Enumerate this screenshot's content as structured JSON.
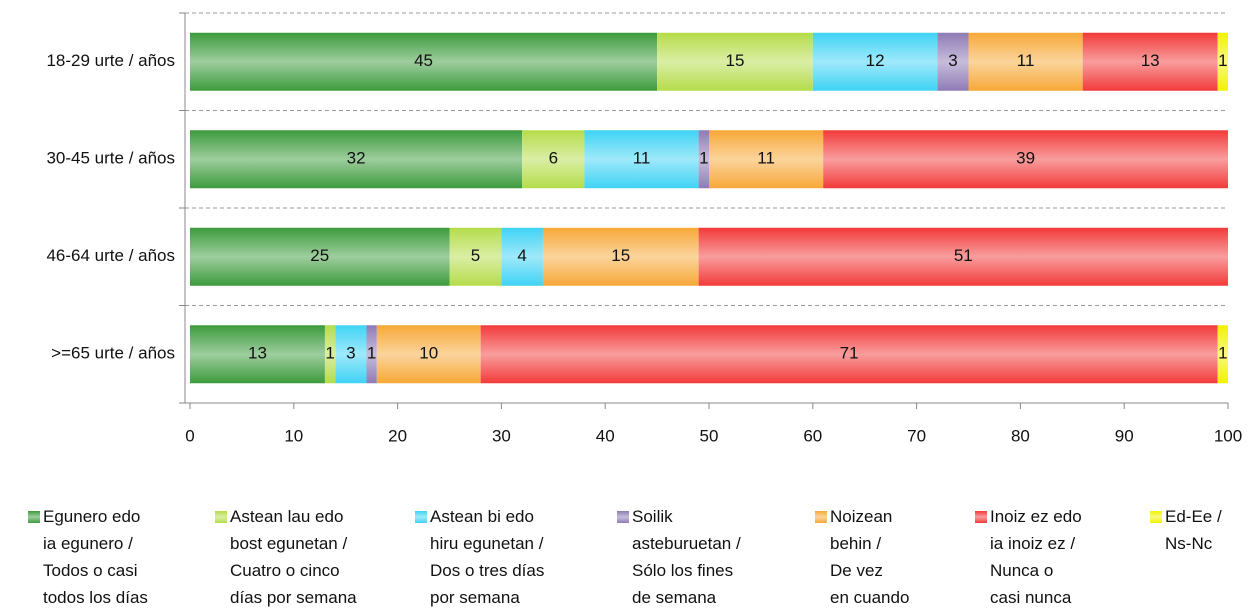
{
  "chart_data": {
    "type": "bar",
    "orientation": "horizontal",
    "stacked": true,
    "categories": [
      "18-29 urte / años",
      "30-45 urte / años",
      "46-64 urte / años",
      ">=65 urte / años"
    ],
    "series": [
      {
        "name": "Egunero edo\nia egunero /\nTodos o casi\ntodos los días",
        "color": "#3c9b3c",
        "values": [
          45,
          32,
          25,
          13
        ]
      },
      {
        "name": "Astean lau edo\nbost egunetan /\nCuatro o cinco\ndías por semana",
        "color": "#b5dc4a",
        "values": [
          15,
          6,
          5,
          1
        ]
      },
      {
        "name": "Astean bi edo\nhiru egunetan /\nDos o tres días\npor semana",
        "color": "#3fd3f5",
        "values": [
          12,
          11,
          4,
          3
        ]
      },
      {
        "name": "Soilik\nasteburuetan /\nSólo los fines\nde semana",
        "color": "#8f7bb5",
        "values": [
          3,
          1,
          null,
          1
        ]
      },
      {
        "name": "Noizean\nbehin /\nDe vez\nen cuando",
        "color": "#f7a838",
        "values": [
          11,
          11,
          15,
          10
        ]
      },
      {
        "name": "Inoiz ez edo\nia inoiz ez /\nNunca o\ncasi nunca",
        "color": "#f23a3a",
        "values": [
          13,
          39,
          51,
          71
        ]
      },
      {
        "name": "Ed-Ee /\nNs-Nc",
        "color": "#f2f200",
        "values": [
          1,
          null,
          null,
          1
        ]
      }
    ],
    "xlim": [
      0,
      100
    ],
    "xticks": [
      0,
      10,
      20,
      30,
      40,
      50,
      60,
      70,
      80,
      90,
      100
    ],
    "grid": true,
    "legend": "bottom"
  }
}
